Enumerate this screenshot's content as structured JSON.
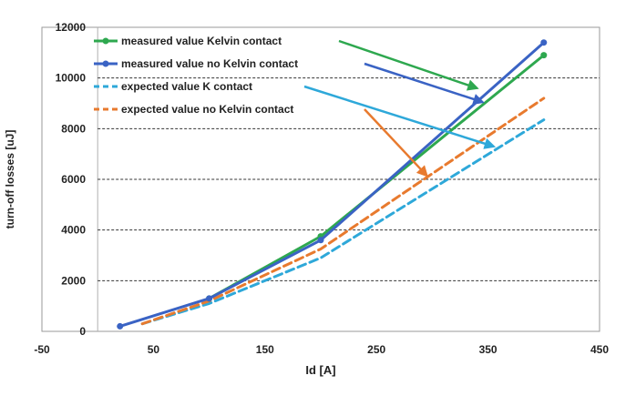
{
  "chart_data": {
    "type": "line",
    "xlabel": "Id [A]",
    "ylabel": "turn-off losses [uJ]",
    "xlim": [
      -50,
      450
    ],
    "ylim": [
      0,
      12000
    ],
    "x_ticks": [
      "-50",
      "50",
      "150",
      "250",
      "350",
      "450"
    ],
    "x_tick_values": [
      -50,
      50,
      150,
      250,
      350,
      450
    ],
    "y_ticks": [
      "0",
      "2000",
      "4000",
      "6000",
      "8000",
      "10000",
      "12000"
    ],
    "y_tick_values": [
      0,
      2000,
      4000,
      6000,
      8000,
      10000,
      12000
    ],
    "grid": "horizontal dashed",
    "legend_position": "top-left",
    "series": [
      {
        "name": "measured value Kelvin contact",
        "color": "#2ea84f",
        "style": "solid-marker",
        "x": [
          100,
          200,
          400
        ],
        "y": [
          1300,
          3750,
          10900
        ],
        "arrow_to": [
          340,
          9600
        ]
      },
      {
        "name": "measured value no Kelvin contact",
        "color": "#3a63c4",
        "style": "solid-marker",
        "x": [
          20,
          100,
          200,
          400
        ],
        "y": [
          200,
          1300,
          3600,
          11400
        ],
        "arrow_to": [
          345,
          9050
        ]
      },
      {
        "name": "expected value K contact",
        "color": "#2ea8d9",
        "style": "dashed",
        "x": [
          40,
          100,
          200,
          400
        ],
        "y": [
          300,
          1100,
          2900,
          8350
        ],
        "arrow_to": [
          355,
          7300
        ]
      },
      {
        "name": "expected value no Kelvin contact",
        "color": "#e87a2e",
        "style": "dashed",
        "x": [
          40,
          100,
          200,
          400
        ],
        "y": [
          300,
          1200,
          3250,
          9200
        ],
        "arrow_to": [
          295,
          6150
        ]
      }
    ]
  }
}
